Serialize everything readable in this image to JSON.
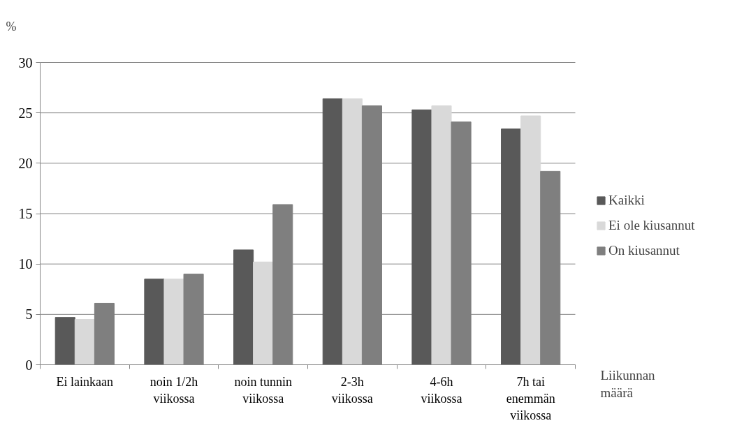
{
  "chart_data": {
    "type": "bar",
    "ylabel": "%",
    "xlabel": "Liikunnan määrä",
    "categories": [
      "Ei lainkaan",
      "noin 1/2h viikossa",
      "noin tunnin viikossa",
      "2-3h viikossa",
      "4-6h viikossa",
      "7h tai enemmän viikossa"
    ],
    "series": [
      {
        "name": "Kaikki",
        "color": "#595959",
        "values": [
          4.7,
          8.5,
          11.4,
          26.4,
          25.3,
          23.4
        ]
      },
      {
        "name": "Ei ole kiusannut",
        "color": "#d9d9d9",
        "values": [
          4.5,
          8.5,
          10.2,
          26.4,
          25.7,
          24.7
        ]
      },
      {
        "name": "On kiusannut",
        "color": "#7f7f7f",
        "values": [
          6.1,
          9.0,
          15.9,
          25.7,
          24.1,
          19.2
        ]
      }
    ],
    "ylim": [
      0,
      30
    ],
    "yticks": [
      0,
      5,
      10,
      15,
      20,
      25,
      30
    ],
    "grid": "y",
    "legend": "right"
  }
}
